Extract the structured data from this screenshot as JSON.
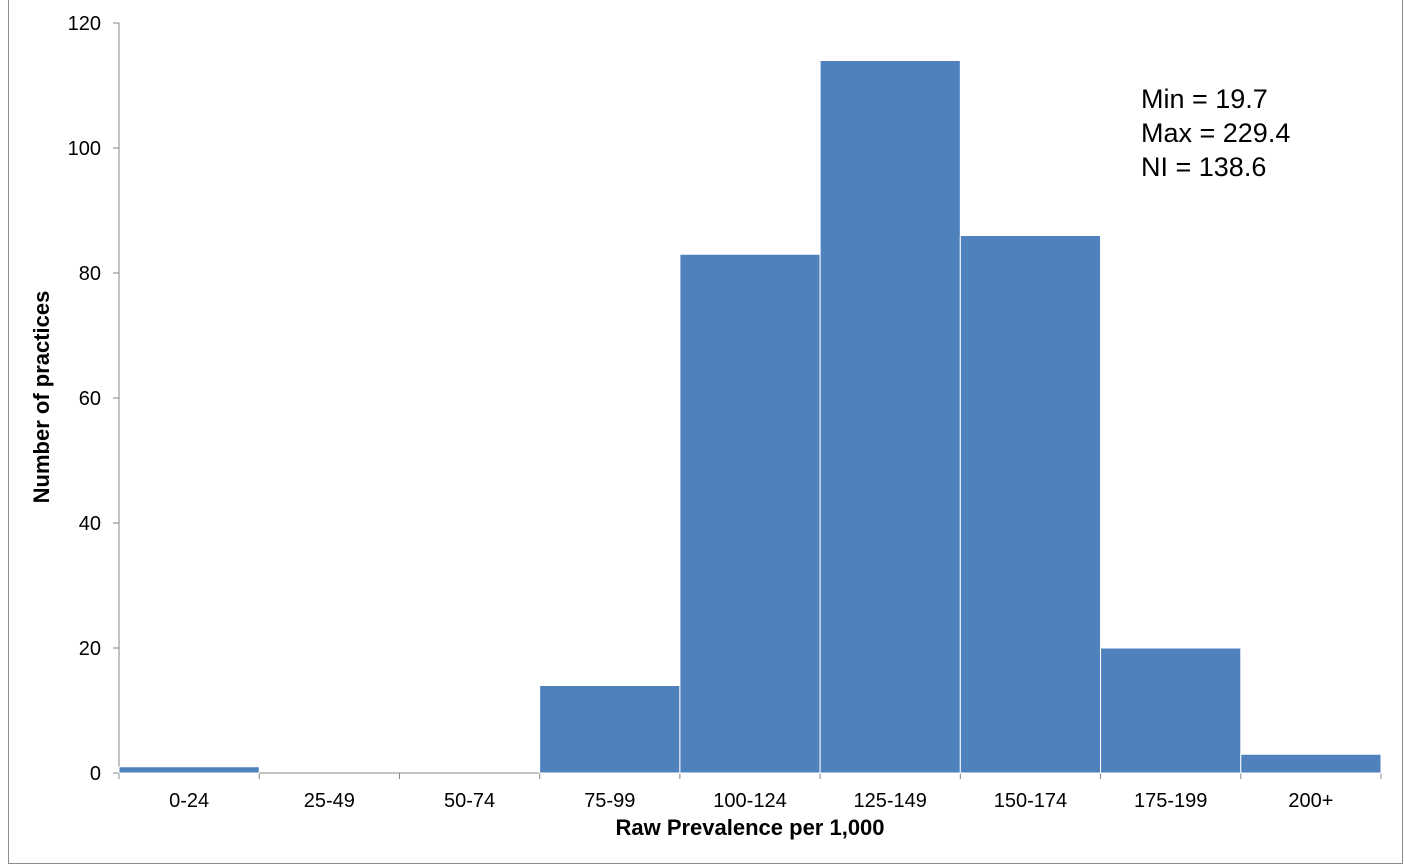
{
  "chart_data": {
    "type": "bar",
    "categories": [
      "0-24",
      "25-49",
      "50-74",
      "75-99",
      "100-124",
      "125-149",
      "150-174",
      "175-199",
      "200+"
    ],
    "values": [
      1,
      0,
      0,
      14,
      83,
      114,
      86,
      20,
      3
    ],
    "xlabel": "Raw Prevalence per 1,000",
    "ylabel": "Number of practices",
    "ylim": [
      0,
      120
    ],
    "yticks": [
      0,
      20,
      40,
      60,
      80,
      100,
      120
    ],
    "bar_color": "#4f81bd",
    "grid": false,
    "legend": "none"
  },
  "annotation": {
    "lines": [
      "Min = 19.7",
      "Max = 229.4",
      "NI = 138.6"
    ]
  }
}
